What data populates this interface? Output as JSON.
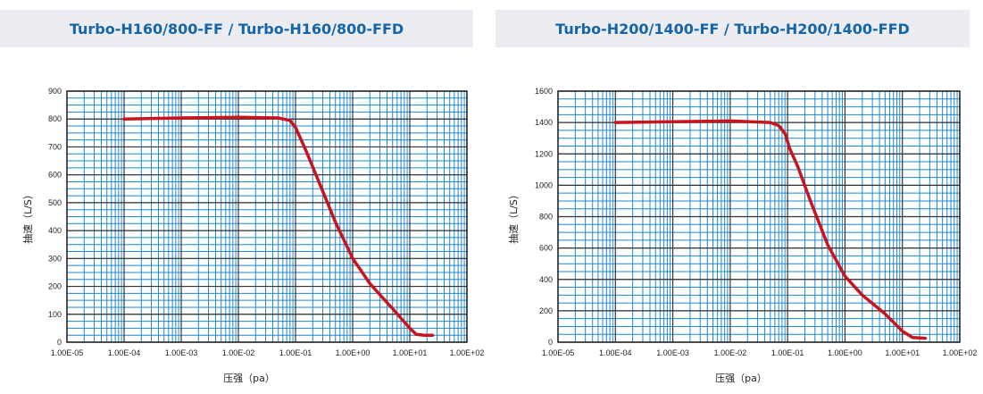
{
  "chart_data": [
    {
      "type": "line",
      "title": "Turbo-H160/800-FF / Turbo-H160/800-FFD",
      "xlabel": "压强（pa）",
      "ylabel": "抽速（L/S）",
      "xscale": "log",
      "xlim": [
        1e-05,
        100
      ],
      "ylim": [
        0,
        900
      ],
      "x_tick_labels": [
        "1.00E-05",
        "1.00E-04",
        "1.00E-03",
        "1.00E-02",
        "1.00E-01",
        "1.00E+00",
        "1.00E+01",
        "1.00E+02"
      ],
      "y_tick_labels": [
        "0",
        "100",
        "200",
        "300",
        "400",
        "500",
        "600",
        "700",
        "800",
        "900"
      ],
      "grid": true,
      "line_color": "#c8141e",
      "grid_color": "#1e88d0",
      "series": [
        {
          "x": [
            0.0001,
            0.001,
            0.01,
            0.05,
            0.08,
            0.1,
            0.15,
            0.25,
            0.5,
            1.0,
            2.0,
            5.0,
            10.0,
            13.0,
            18.0,
            25.0
          ],
          "y": [
            800,
            804,
            806,
            804,
            795,
            770,
            690,
            580,
            430,
            300,
            210,
            120,
            50,
            28,
            25,
            25
          ]
        }
      ]
    },
    {
      "type": "line",
      "title": "Turbo-H200/1400-FF / Turbo-H200/1400-FFD",
      "xlabel": "压强（pa）",
      "ylabel": "抽速（L/S）",
      "xscale": "log",
      "xlim": [
        1e-05,
        100
      ],
      "ylim": [
        0,
        1600
      ],
      "x_tick_labels": [
        "1.00E-05",
        "1.00E-04",
        "1.00E-03",
        "1.00E-02",
        "1.00E-01",
        "1.00E+00",
        "1.00E+01",
        "1.00E+02"
      ],
      "y_tick_labels": [
        "0",
        "200",
        "400",
        "600",
        "800",
        "1000",
        "1200",
        "1400",
        "1600"
      ],
      "grid": true,
      "line_color": "#c8141e",
      "grid_color": "#1e88d0",
      "series": [
        {
          "x": [
            0.0001,
            0.001,
            0.01,
            0.05,
            0.07,
            0.09,
            0.11,
            0.15,
            0.25,
            0.5,
            1.0,
            2.0,
            5.0,
            10.0,
            15.0,
            25.0
          ],
          "y": [
            1400,
            1405,
            1410,
            1400,
            1380,
            1330,
            1230,
            1120,
            900,
            620,
            420,
            300,
            180,
            70,
            30,
            25
          ]
        }
      ]
    }
  ]
}
